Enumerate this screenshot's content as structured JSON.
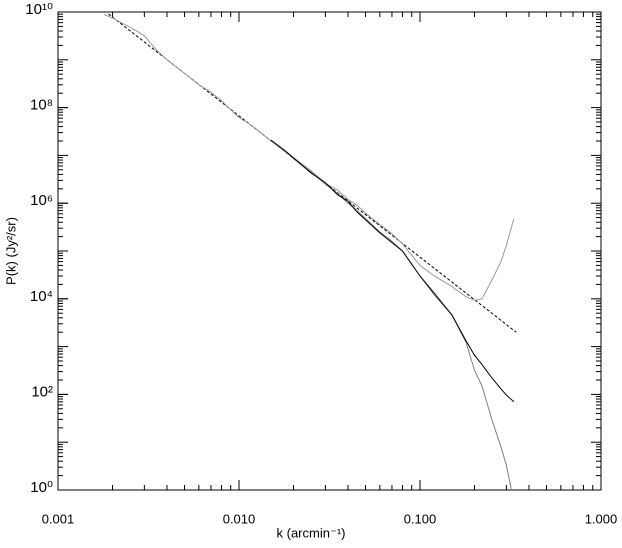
{
  "chart_data": {
    "type": "line",
    "xlabel": "k (arcmin⁻¹)",
    "ylabel": "P(k) (Jy²/sr)",
    "xscale": "log",
    "yscale": "log",
    "xlim": [
      0.001,
      1.0
    ],
    "ylim": [
      1,
      10000000000
    ],
    "xticks": [
      {
        "value": 0.001,
        "label": "0.001"
      },
      {
        "value": 0.01,
        "label": "0.010"
      },
      {
        "value": 0.1,
        "label": "0.100"
      },
      {
        "value": 1.0,
        "label": "1.000"
      }
    ],
    "yticks": [
      {
        "value": 1,
        "label": "10⁰"
      },
      {
        "value": 100,
        "label": "10²"
      },
      {
        "value": 10000,
        "label": "10⁴"
      },
      {
        "value": 1000000,
        "label": "10⁶"
      },
      {
        "value": 100000000,
        "label": "10⁸"
      },
      {
        "value": 10000000000,
        "label": "10¹⁰"
      }
    ],
    "series": [
      {
        "color": "#000000",
        "dash": "3,2",
        "x": [
          0.0019,
          0.34
        ],
        "values": [
          9100000000,
          2000
        ]
      },
      {
        "color": "#9a9a9a",
        "dash": null,
        "x": [
          0.0018,
          0.002,
          0.0025,
          0.003,
          0.0035,
          0.004,
          0.005,
          0.006,
          0.007,
          0.008,
          0.009,
          0.01,
          0.012,
          0.015,
          0.018,
          0.02,
          0.025,
          0.03,
          0.035,
          0.04,
          0.045,
          0.05,
          0.06,
          0.07,
          0.08,
          0.1,
          0.12,
          0.15,
          0.18,
          0.2,
          0.22,
          0.25,
          0.28,
          0.3,
          0.33
        ],
        "values": [
          8800000000,
          7500000000,
          4800000000,
          3200000000,
          1600000000,
          1000000000,
          520000000,
          300000000,
          210000000,
          140000000,
          90000000,
          62000000,
          40000000,
          20000000,
          12000000,
          9000000,
          4800000,
          2600000,
          1900000,
          1200000,
          900000,
          620000,
          360000,
          230000,
          140000,
          50000,
          30000,
          18000,
          11000,
          9300,
          10000,
          25000,
          60000,
          130000,
          470000
        ]
      },
      {
        "color": "#808080",
        "dash": null,
        "x": [
          0.015,
          0.02,
          0.025,
          0.03,
          0.035,
          0.04,
          0.045,
          0.05,
          0.06,
          0.07,
          0.08,
          0.1,
          0.12,
          0.15,
          0.18,
          0.2,
          0.22,
          0.25,
          0.28,
          0.3,
          0.32
        ],
        "values": [
          21000000,
          8600000,
          4500000,
          2500000,
          1600000,
          1000000,
          700000,
          480000,
          250000,
          160000,
          100000,
          30000,
          12000,
          4600,
          1200,
          320,
          150,
          29,
          8,
          3.3,
          1
        ]
      },
      {
        "color": "#000000",
        "dash": null,
        "x": [
          0.015,
          0.018,
          0.02,
          0.025,
          0.03,
          0.035,
          0.04,
          0.045,
          0.05,
          0.06,
          0.07,
          0.08,
          0.1,
          0.12,
          0.15,
          0.18,
          0.2,
          0.22,
          0.25,
          0.28,
          0.3,
          0.33
        ],
        "values": [
          21000000,
          12500000,
          8800000,
          4300000,
          2700000,
          1500000,
          1100000,
          650000,
          450000,
          240000,
          150000,
          100000,
          30000,
          13000,
          4600,
          1300,
          660,
          420,
          220,
          130,
          97,
          70
        ]
      }
    ]
  }
}
